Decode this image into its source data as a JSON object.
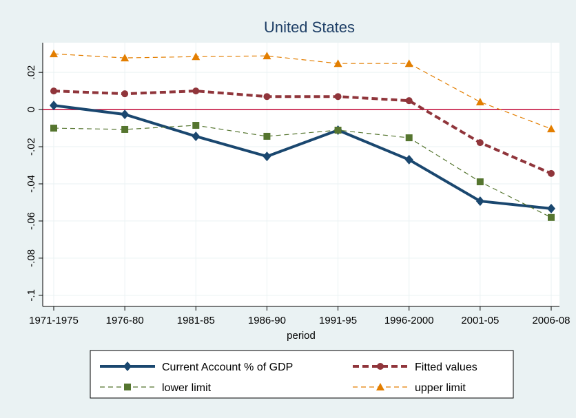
{
  "chart_data": {
    "type": "line",
    "title": "United States",
    "x_label": "period",
    "categories": [
      "1971-1975",
      "1976-80",
      "1981-85",
      "1986-90",
      "1991-95",
      "1996-2000",
      "2001-05",
      "2006-08"
    ],
    "ylim": [
      -0.106,
      0.036
    ],
    "yticks": [
      {
        "value": 0.02,
        "label": ".02"
      },
      0,
      {
        "value": -0.02,
        "label": "-.02"
      },
      {
        "value": -0.04,
        "label": "-.04"
      },
      {
        "value": -0.06,
        "label": "-.06"
      },
      {
        "value": -0.08,
        "label": "-.08"
      },
      {
        "value": -0.1,
        "label": "-.1"
      }
    ],
    "grid": true,
    "reference_line": {
      "value": 0,
      "color": "#c10534"
    },
    "series": [
      {
        "name": "Current Account % of GDP",
        "color": "#1a476f",
        "width": 4,
        "dash": "none",
        "marker": "diamond",
        "values": [
          0.0022,
          -0.0026,
          -0.0144,
          -0.0252,
          -0.0111,
          -0.027,
          -0.0493,
          -0.0533
        ]
      },
      {
        "name": "Fitted values",
        "color": "#90353b",
        "width": 4,
        "dash": "9 5",
        "marker": "circle",
        "values": [
          0.01,
          0.0085,
          0.01,
          0.007,
          0.007,
          0.0048,
          -0.0178,
          -0.0344
        ]
      },
      {
        "name": "lower limit",
        "color": "#55752f",
        "width": 1.2,
        "dash": "7 5",
        "marker": "square",
        "values": [
          -0.01,
          -0.0107,
          -0.0085,
          -0.0144,
          -0.0111,
          -0.0152,
          -0.0389,
          -0.0581
        ]
      },
      {
        "name": "upper limit",
        "color": "#e37e00",
        "width": 1.2,
        "dash": "7 5",
        "marker": "triangle",
        "values": [
          0.03,
          0.0278,
          0.0285,
          0.0289,
          0.0248,
          0.0248,
          0.0041,
          -0.0104
        ]
      }
    ]
  }
}
